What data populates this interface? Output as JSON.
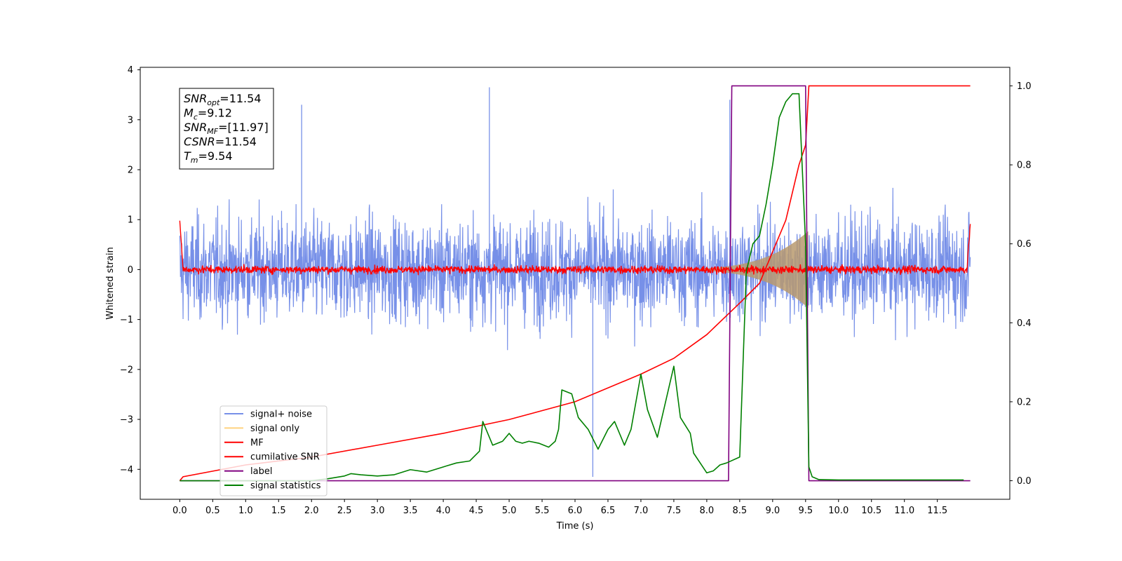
{
  "chart_data": {
    "type": "line",
    "title": "",
    "xlabel": "Time (s)",
    "ylabel_left": "Whitened strain",
    "ylabel_right": "",
    "xlim": [
      -0.6,
      12.6
    ],
    "ylim_left": [
      -4.6,
      4.05
    ],
    "ylim_right": [
      -0.047,
      1.047
    ],
    "grid": false,
    "legend_position": "lower-left",
    "x_ticks": [
      "0.0",
      "0.5",
      "1.0",
      "1.5",
      "2.0",
      "2.5",
      "3.0",
      "3.5",
      "4.0",
      "4.5",
      "5.0",
      "5.5",
      "6.0",
      "6.5",
      "7.0",
      "7.5",
      "8.0",
      "8.5",
      "9.0",
      "9.5",
      "10.0",
      "10.5",
      "11.0",
      "11.5"
    ],
    "x_tick_values": [
      0.0,
      0.5,
      1.0,
      1.5,
      2.0,
      2.5,
      3.0,
      3.5,
      4.0,
      4.5,
      5.0,
      5.5,
      6.0,
      6.5,
      7.0,
      7.5,
      8.0,
      8.5,
      9.0,
      9.5,
      10.0,
      10.5,
      11.0,
      11.5
    ],
    "y_left_ticks": [
      "4",
      "3",
      "2",
      "1",
      "0",
      "−1",
      "−2",
      "−3",
      "−4"
    ],
    "y_left_tick_values": [
      4,
      3,
      2,
      1,
      0,
      -1,
      -2,
      -3,
      -4
    ],
    "y_right_ticks": [
      "1.0",
      "0.8",
      "0.6",
      "0.4",
      "0.2",
      "0.0"
    ],
    "y_right_tick_values": [
      1.0,
      0.8,
      0.6,
      0.4,
      0.2,
      0.0
    ],
    "info_box": [
      {
        "sym": "SNR",
        "sub": "opt",
        "val": "=11.54"
      },
      {
        "sym": "M",
        "sub": "c",
        "val": "=9.12"
      },
      {
        "sym": "SNR",
        "sub": "MF",
        "val": "=[11.97]"
      },
      {
        "sym": "CSNR",
        "sub": "",
        "val": "=11.54"
      },
      {
        "sym": "T",
        "sub": "m",
        "val": "=9.54"
      }
    ],
    "series": [
      {
        "name": "signal+ noise",
        "color": "#7790e8",
        "axis": "left",
        "style": "noise",
        "x_range": [
          0.0,
          12.0
        ],
        "amplitude_typical": 1.6,
        "spikes": [
          [
            4.7,
            3.65
          ],
          [
            6.27,
            -4.15
          ],
          [
            1.85,
            3.3
          ],
          [
            8.35,
            3.4
          ]
        ]
      },
      {
        "name": "signal only",
        "color": "#ffd27f",
        "axis": "left",
        "style": "chirp",
        "x_range": [
          7.0,
          9.54
        ],
        "envelope_peak": 0.75
      },
      {
        "name": "MF",
        "color": "#ff0000",
        "axis": "left",
        "style": "matched-filter",
        "x_range": [
          0.0,
          12.0
        ],
        "start_value": 1.0,
        "end_value": 0.92,
        "noise_amplitude": 0.12
      },
      {
        "name": "cumilative SNR",
        "color": "#ff0000",
        "axis": "right",
        "x": [
          0.0,
          0.05,
          1.0,
          2.0,
          3.0,
          4.0,
          5.0,
          6.0,
          7.0,
          7.5,
          8.0,
          8.5,
          8.8,
          9.0,
          9.2,
          9.4,
          9.5,
          9.55,
          9.6,
          10.0,
          11.0,
          12.0
        ],
        "y": [
          0.0,
          0.01,
          0.04,
          0.06,
          0.09,
          0.12,
          0.155,
          0.2,
          0.27,
          0.31,
          0.37,
          0.45,
          0.5,
          0.58,
          0.66,
          0.8,
          0.85,
          1.0,
          1.0,
          1.0,
          1.0,
          1.0
        ]
      },
      {
        "name": "label",
        "color": "#800080",
        "axis": "right",
        "x": [
          0.0,
          8.33,
          8.38,
          9.5,
          9.55,
          12.0
        ],
        "y": [
          0.0,
          0.0,
          1.0,
          1.0,
          0.0,
          0.0
        ]
      },
      {
        "name": "signal statistics",
        "color": "#008000",
        "axis": "right",
        "x": [
          0.0,
          1.0,
          2.0,
          2.25,
          2.5,
          2.6,
          2.75,
          3.0,
          3.25,
          3.5,
          3.75,
          4.0,
          4.2,
          4.4,
          4.55,
          4.6,
          4.75,
          4.9,
          5.0,
          5.1,
          5.2,
          5.3,
          5.45,
          5.6,
          5.7,
          5.75,
          5.8,
          5.95,
          6.05,
          6.2,
          6.35,
          6.5,
          6.6,
          6.75,
          6.85,
          7.0,
          7.1,
          7.25,
          7.5,
          7.6,
          7.75,
          7.8,
          7.9,
          8.0,
          8.1,
          8.2,
          8.3,
          8.5,
          8.6,
          8.7,
          8.8,
          8.9,
          9.0,
          9.1,
          9.2,
          9.3,
          9.4,
          9.5,
          9.55,
          9.6,
          9.7,
          10.0,
          11.0,
          11.9
        ],
        "y": [
          0.0,
          0.0,
          0.0,
          0.005,
          0.012,
          0.018,
          0.015,
          0.012,
          0.015,
          0.028,
          0.022,
          0.035,
          0.045,
          0.05,
          0.075,
          0.15,
          0.09,
          0.1,
          0.12,
          0.1,
          0.095,
          0.1,
          0.095,
          0.085,
          0.1,
          0.13,
          0.23,
          0.22,
          0.16,
          0.13,
          0.08,
          0.13,
          0.15,
          0.09,
          0.13,
          0.27,
          0.18,
          0.11,
          0.29,
          0.16,
          0.12,
          0.07,
          0.045,
          0.02,
          0.025,
          0.04,
          0.045,
          0.06,
          0.53,
          0.6,
          0.62,
          0.7,
          0.8,
          0.92,
          0.96,
          0.98,
          0.98,
          0.6,
          0.035,
          0.01,
          0.003,
          0.002,
          0.002,
          0.002
        ]
      }
    ]
  }
}
